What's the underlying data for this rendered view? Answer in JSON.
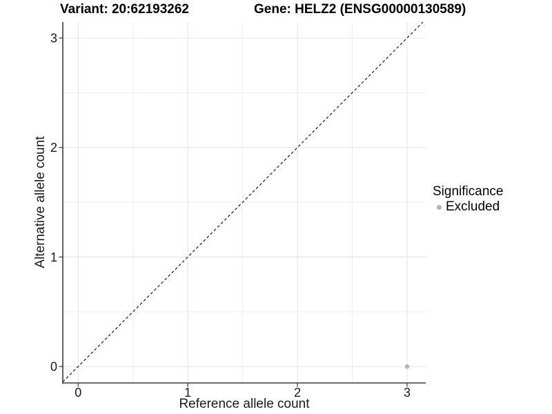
{
  "chart_data": {
    "type": "scatter",
    "titles": {
      "left": "Variant: 20:62193262",
      "right": "Gene: HELZ2 (ENSG00000130589)"
    },
    "xlabel": "Reference allele count",
    "ylabel": "Alternative allele count",
    "xlim": [
      -0.14,
      3.17
    ],
    "ylim": [
      -0.15,
      3.145
    ],
    "x_ticks": [
      0,
      1,
      2,
      3
    ],
    "y_ticks": [
      0,
      1,
      2,
      3
    ],
    "x_minor_ticks": [
      0.5,
      1.5,
      2.5
    ],
    "y_minor_ticks": [
      0.5,
      1.5,
      2.5
    ],
    "grid": "on",
    "series": [
      {
        "name": "Excluded",
        "color": "#b3b3b3",
        "points": [
          {
            "x": 3,
            "y": 0
          }
        ]
      }
    ],
    "reference_line": {
      "equation": "y = x",
      "style": "dashed",
      "color": "#000000"
    },
    "legend": {
      "title": "Significance",
      "position": "right",
      "items": [
        {
          "label": "Excluded",
          "color": "#b3b3b3"
        }
      ]
    },
    "colors": {
      "axis_line": "#3a3a3a",
      "tick_mark": "#333333",
      "tick_label": "#1a1a1a",
      "grid_major": "#e3e3e3",
      "grid_minor": "#efefef",
      "panel_background": "#ffffff"
    }
  }
}
